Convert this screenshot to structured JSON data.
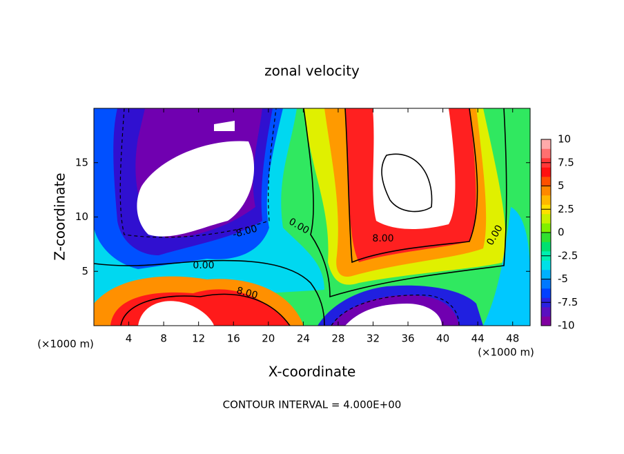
{
  "chart_data": {
    "type": "contour",
    "title": "zonal velocity",
    "x_label": "X-coordinate",
    "y_label": "Z-coordinate",
    "y_unit": "(×1000 m)",
    "x_unit": "(×1000 m)",
    "footnote": "CONTOUR INTERVAL = 4.000E+00",
    "xlim": [
      0,
      50
    ],
    "xticks": [
      4,
      8,
      12,
      16,
      20,
      24,
      28,
      32,
      36,
      40,
      44,
      48
    ],
    "ylim": [
      0,
      20
    ],
    "yticks": [
      5,
      10,
      15
    ],
    "colorbar": {
      "lim": [
        -10,
        10
      ],
      "ticks": [
        10,
        7.5,
        5,
        2.5,
        0,
        -2.5,
        -5,
        -7.5,
        -10
      ],
      "colors": [
        "#8000a0",
        "#5a10c0",
        "#2a20e0",
        "#0040ff",
        "#0078ff",
        "#00b0ff",
        "#00e0e8",
        "#00f0b0",
        "#00e070",
        "#30e030",
        "#80f000",
        "#c8f000",
        "#ffe000",
        "#ffb800",
        "#ff8800",
        "#ff5000",
        "#ff1010",
        "#ff3838",
        "#ff7070",
        "#ffaaaa"
      ]
    },
    "contour_labels": [
      "0.00",
      "0.00",
      "0.00",
      "-8.00",
      "8.00",
      "8.00"
    ]
  }
}
